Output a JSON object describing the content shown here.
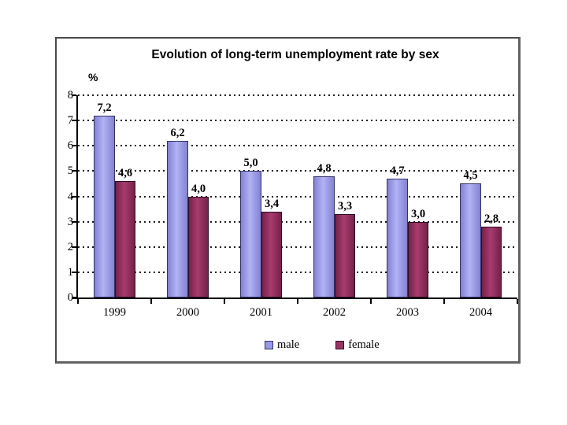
{
  "chart_data": {
    "type": "bar",
    "title": "Evolution of long-term unemployment rate by sex",
    "ylabel": "%",
    "xlabel": "",
    "categories": [
      "1999",
      "2000",
      "2001",
      "2002",
      "2003",
      "2004"
    ],
    "series": [
      {
        "name": "male",
        "values": [
          7.2,
          6.2,
          5.0,
          4.8,
          4.7,
          4.5
        ],
        "display_labels": [
          "7,2",
          "6,2",
          "5,0",
          "4,8",
          "4,7",
          "4,5"
        ],
        "fill": "#9999e8",
        "fill_dark": "#8282d4",
        "fill_light": "#b2b2f4",
        "border": "#333366"
      },
      {
        "name": "female",
        "values": [
          4.6,
          4.0,
          3.4,
          3.3,
          3.0,
          2.8
        ],
        "display_labels": [
          "4,6",
          "4,0",
          "3,4",
          "3,3",
          "3,0",
          "2,8"
        ],
        "fill": "#993366",
        "fill_dark": "#742249",
        "fill_light": "#a83b6f",
        "border": "#2a1026"
      }
    ],
    "ylim": [
      0,
      8
    ],
    "y_ticks": [
      "0",
      "1",
      "2",
      "3",
      "4",
      "5",
      "6",
      "7",
      "8"
    ],
    "grid": "dotted horizontal gridlines at each integer",
    "legend_position": "bottom",
    "legend": [
      "male",
      "female"
    ],
    "decimal_separator": ","
  }
}
